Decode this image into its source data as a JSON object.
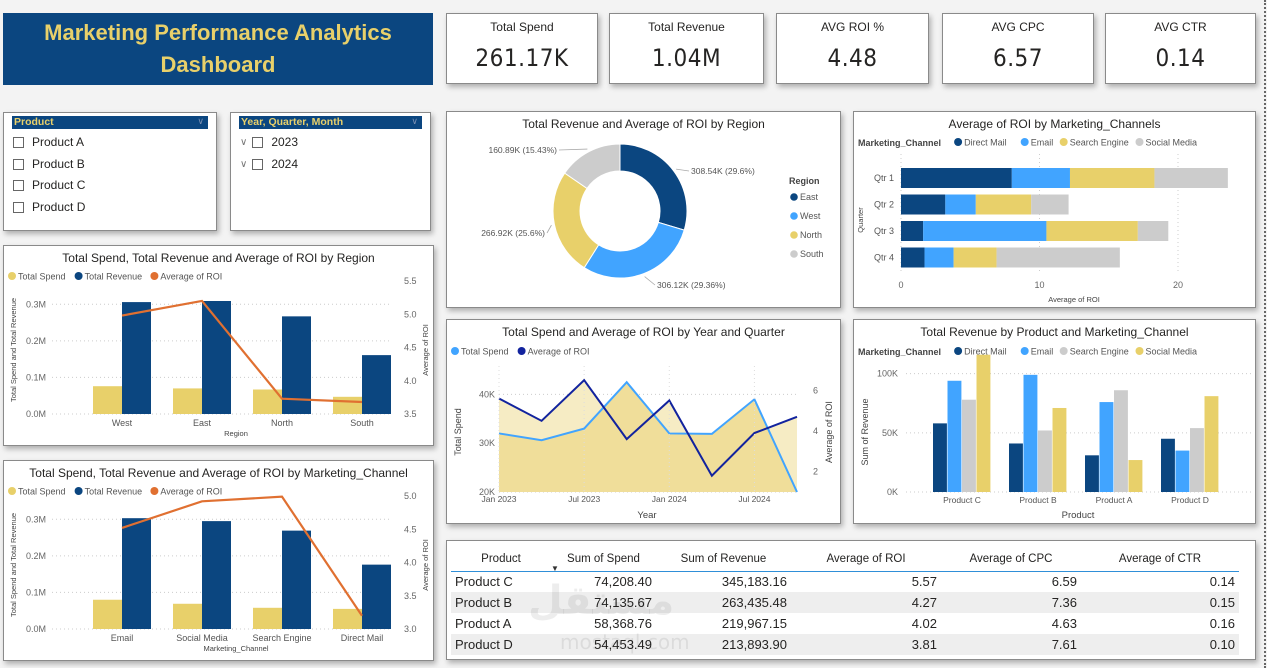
{
  "header": {
    "title_line1": "Marketing Performance Analytics",
    "title_line2": "Dashboard"
  },
  "kpis": [
    {
      "label": "Total Spend",
      "value": "261.17K"
    },
    {
      "label": "Total Revenue",
      "value": "1.04M"
    },
    {
      "label": "AVG ROI %",
      "value": "4.48"
    },
    {
      "label": "AVG CPC",
      "value": "6.57"
    },
    {
      "label": "AVG CTR",
      "value": "0.14"
    }
  ],
  "slicers": {
    "product": {
      "header": "Product",
      "items": [
        "Product A",
        "Product B",
        "Product C",
        "Product D"
      ]
    },
    "date": {
      "header": "Year, Quarter, Month",
      "items": [
        "2023",
        "2024"
      ]
    }
  },
  "colors": {
    "navy": "#0b4680",
    "light_blue": "#41a4ff",
    "yellow": "#e8d06a",
    "gray": "#cccccc",
    "orange": "#e07031",
    "dark_navy": "#12239e",
    "area_fill": "#f0de9a",
    "area_fill_light": "#f6ecc4"
  },
  "chart_data": [
    {
      "id": "region_combo",
      "type": "bar",
      "title": "Total Spend, Total Revenue and Average of ROI by Region",
      "legend": [
        "Total Spend",
        "Total Revenue",
        "Average of ROI"
      ],
      "legend_position": "top-left",
      "xlabel": "Region",
      "ylabel": "Total Spend and Total Revenue",
      "y2label": "Average of ROI",
      "categories": [
        "West",
        "East",
        "North",
        "South"
      ],
      "series": [
        {
          "name": "Total Spend",
          "kind": "bar",
          "values": [
            0.076,
            0.07,
            0.067,
            0.047
          ]
        },
        {
          "name": "Total Revenue",
          "kind": "bar",
          "values": [
            0.306,
            0.309,
            0.267,
            0.161
          ]
        },
        {
          "name": "Average of ROI",
          "kind": "line",
          "axis": "right",
          "values": [
            4.98,
            5.2,
            3.73,
            3.68
          ]
        }
      ],
      "yticks": [
        "0.0M",
        "0.1M",
        "0.2M",
        "0.3M"
      ],
      "ylim": [
        0,
        0.35
      ],
      "y2ticks": [
        "3.5",
        "4.0",
        "4.5",
        "5.0",
        "5.5"
      ],
      "y2lim": [
        3.5,
        5.5
      ],
      "grid": true
    },
    {
      "id": "channel_combo",
      "type": "bar",
      "title": "Total Spend, Total Revenue and Average of ROI by Marketing_Channel",
      "legend": [
        "Total Spend",
        "Total Revenue",
        "Average of ROI"
      ],
      "legend_position": "top-left",
      "xlabel": "Marketing_Channel",
      "ylabel": "Total Spend and Total Revenue",
      "y2label": "Average of ROI",
      "categories": [
        "Email",
        "Social Media",
        "Search Engine",
        "Direct Mail"
      ],
      "series": [
        {
          "name": "Total Spend",
          "kind": "bar",
          "values": [
            0.08,
            0.069,
            0.058,
            0.055
          ]
        },
        {
          "name": "Total Revenue",
          "kind": "bar",
          "values": [
            0.303,
            0.295,
            0.269,
            0.176
          ]
        },
        {
          "name": "Average of ROI",
          "kind": "line",
          "axis": "right",
          "values": [
            4.52,
            4.92,
            4.99,
            3.2
          ]
        }
      ],
      "yticks": [
        "0.0M",
        "0.1M",
        "0.2M",
        "0.3M"
      ],
      "ylim": [
        0,
        0.35
      ],
      "y2ticks": [
        "3.0",
        "3.5",
        "4.0",
        "4.5",
        "5.0"
      ],
      "y2lim": [
        3.0,
        5.0
      ],
      "grid": true
    },
    {
      "id": "region_donut",
      "type": "pie",
      "title": "Total Revenue and Average of ROI by Region",
      "legend_title": "Region",
      "legend_position": "right",
      "categories": [
        "East",
        "West",
        "North",
        "South"
      ],
      "values": [
        308.54,
        306.12,
        266.92,
        160.89
      ],
      "labels": [
        "308.54K (29.6%)",
        "306.12K (29.36%)",
        "266.92K (25.6%)",
        "160.89K (15.43%)"
      ]
    },
    {
      "id": "quarter_stacked",
      "type": "bar",
      "orientation": "horizontal-stacked",
      "title": "Average of ROI by Marketing_Channels",
      "legend_title": "Marketing_Channel",
      "legend_position": "top-left",
      "xlabel": "Average of ROI",
      "ylabel": "Quarter",
      "categories": [
        "Qtr 1",
        "Qtr 2",
        "Qtr 3",
        "Qtr 4"
      ],
      "series": [
        {
          "name": "Direct Mail",
          "values": [
            8.0,
            3.2,
            1.6,
            1.7
          ]
        },
        {
          "name": "Email",
          "values": [
            4.2,
            2.2,
            8.9,
            2.1
          ]
        },
        {
          "name": "Search Engine",
          "values": [
            6.1,
            4.0,
            6.6,
            3.1
          ]
        },
        {
          "name": "Social Media",
          "values": [
            5.3,
            2.7,
            2.2,
            8.9
          ]
        }
      ],
      "xticks": [
        "0",
        "10",
        "20"
      ],
      "xlim": [
        0,
        25
      ],
      "grid": true
    },
    {
      "id": "year_quarter_line",
      "type": "line",
      "title": "Total Spend and Average of ROI by Year and Quarter",
      "legend": [
        "Total Spend",
        "Average of ROI"
      ],
      "legend_position": "top-left",
      "xlabel": "Year",
      "ylabel": "Total Spend",
      "y2label": "Average of ROI",
      "x": [
        "2023 Q1",
        "2023 Q2",
        "2023 Q3",
        "2023 Q4",
        "2024 Q1",
        "2024 Q2",
        "2024 Q3",
        "2024 Q4"
      ],
      "xticks": [
        "Jan 2023",
        "Jul 2023",
        "Jan 2024",
        "Jul 2024"
      ],
      "series": [
        {
          "name": "Total Spend",
          "axis": "left",
          "values": [
            32000,
            30600,
            33000,
            42500,
            32000,
            31900,
            39000,
            20000
          ]
        },
        {
          "name": "Average of ROI",
          "axis": "right",
          "values": [
            5.6,
            4.5,
            6.5,
            3.6,
            5.5,
            1.8,
            3.9,
            4.7
          ]
        }
      ],
      "yticks": [
        "20K",
        "30K",
        "40K"
      ],
      "ylim": [
        20000,
        45000
      ],
      "y2ticks": [
        "2",
        "4",
        "6"
      ],
      "y2lim": [
        1,
        7
      ],
      "grid": true
    },
    {
      "id": "product_channel_bar",
      "type": "bar",
      "title": "Total Revenue by Product and Marketing_Channel",
      "legend_title": "Marketing_Channel",
      "legend_position": "top-left",
      "xlabel": "Product",
      "ylabel": "Sum of Revenue",
      "categories": [
        "Product C",
        "Product B",
        "Product A",
        "Product D"
      ],
      "series": [
        {
          "name": "Direct Mail",
          "values": [
            58,
            41,
            31,
            45
          ]
        },
        {
          "name": "Email",
          "values": [
            94,
            99,
            76,
            35
          ]
        },
        {
          "name": "Search Engine",
          "values": [
            78,
            52,
            86,
            54
          ]
        },
        {
          "name": "Social Media",
          "values": [
            116,
            71,
            27,
            81
          ]
        }
      ],
      "yticks": [
        "0K",
        "50K",
        "100K"
      ],
      "ylim": [
        0,
        125
      ],
      "grid": true
    }
  ],
  "table": {
    "columns": [
      "Product",
      "Sum of Spend",
      "Sum of Revenue",
      "Average of ROI",
      "Average of CPC",
      "Average of CTR"
    ],
    "rows": [
      [
        "Product C",
        "74,208.40",
        "345,183.16",
        "5.57",
        "6.59",
        "0.14"
      ],
      [
        "Product B",
        "74,135.67",
        "263,435.48",
        "4.27",
        "7.36",
        "0.15"
      ],
      [
        "Product A",
        "58,368.76",
        "219,967.15",
        "4.02",
        "4.63",
        "0.16"
      ],
      [
        "Product D",
        "54,453.49",
        "213,893.90",
        "3.81",
        "7.61",
        "0.10"
      ]
    ],
    "sort_indicator": "▼"
  },
  "watermark": {
    "line1": "مستقل",
    "line2": "mostaql.com"
  }
}
